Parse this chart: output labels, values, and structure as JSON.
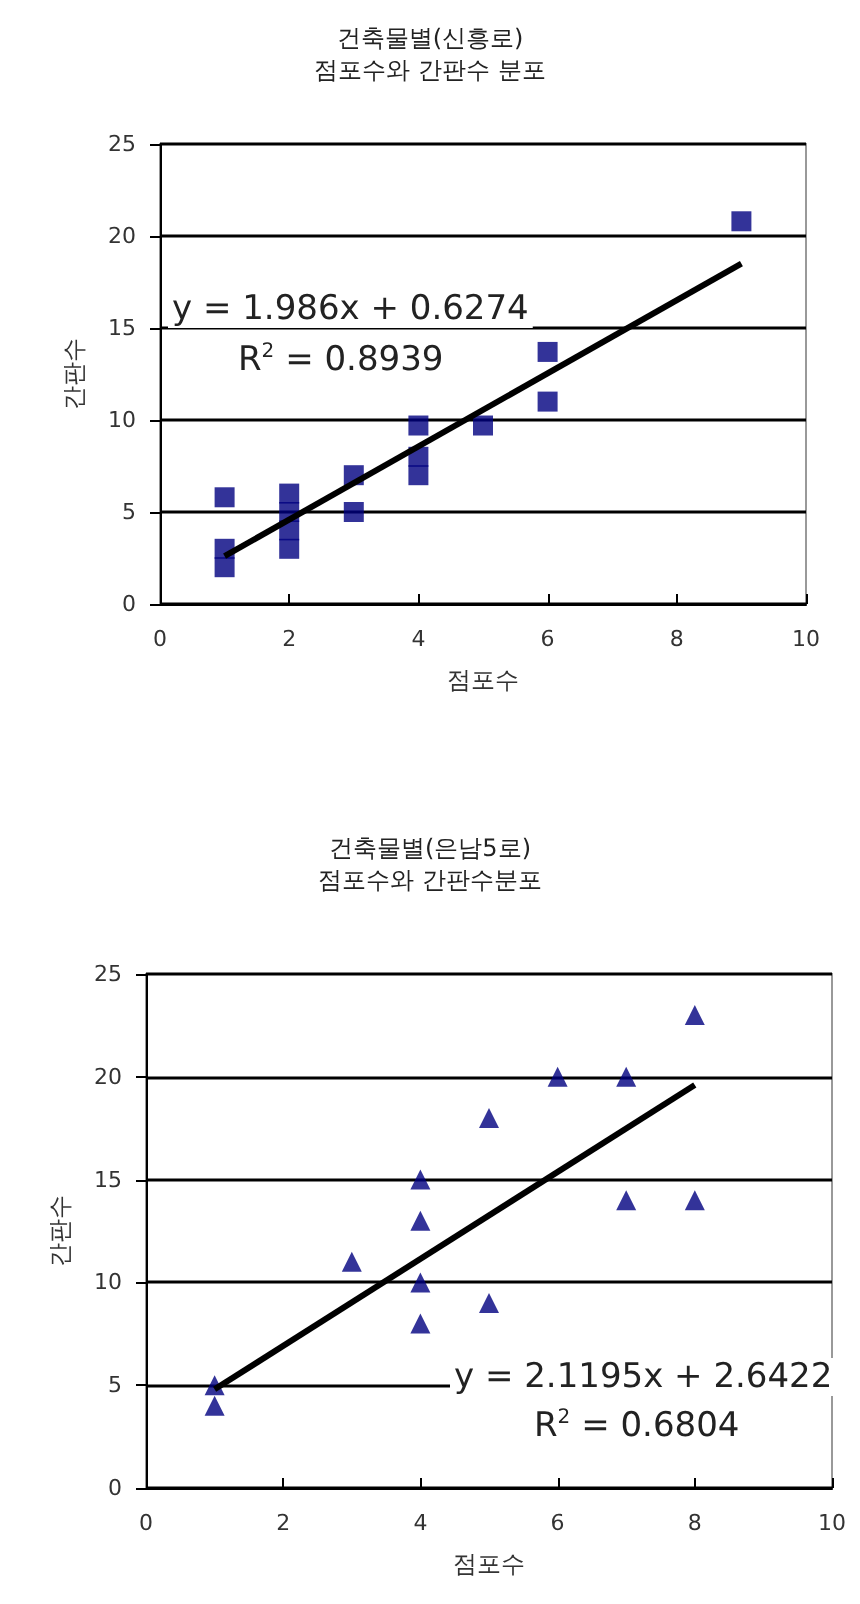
{
  "chart_data": [
    {
      "type": "scatter",
      "title": "건축물별(신흥로)",
      "subtitle": "점포수와 간판수 분포",
      "xlabel": "점포수",
      "ylabel": "간판수",
      "marker": "square",
      "grid": "y",
      "xlim": [
        0,
        10
      ],
      "xticks": [
        0,
        2,
        4,
        6,
        8,
        10
      ],
      "ylim": [
        0,
        25
      ],
      "yticks": [
        0,
        5,
        10,
        15,
        20,
        25
      ],
      "annotations": [
        "y = 1.986x + 0.6274",
        "R$^{2}$ = 0.8939"
      ],
      "series": [
        {
          "color": "#000080",
          "x": [
            1,
            1,
            1,
            2,
            2,
            2,
            2,
            3,
            3,
            4,
            4,
            4,
            5,
            6,
            6,
            9
          ],
          "values": [
            5.8,
            3,
            2,
            6,
            5,
            4,
            3,
            7,
            5,
            9.7,
            8,
            7,
            9.7,
            13.7,
            11,
            20.8
          ]
        },
        {
          "type": "line",
          "color": "#000000",
          "marker": "none",
          "x": [
            1,
            9
          ],
          "values": [
            2.6,
            18.5
          ]
        }
      ]
    },
    {
      "type": "scatter",
      "title": "건축물별(은남5로)",
      "subtitle": "점포수와 간판수분포",
      "xlabel": "점포수",
      "ylabel": "간판수",
      "marker": "triangle",
      "grid": "y",
      "xlim": [
        0,
        10
      ],
      "xticks": [
        0,
        2,
        4,
        6,
        8,
        10
      ],
      "ylim": [
        0,
        25
      ],
      "yticks": [
        0,
        5,
        10,
        15,
        20,
        25
      ],
      "annotations": [
        "y = 2.1195x + 2.6422",
        "R$^{2}$ = 0.6804"
      ],
      "series": [
        {
          "color": "#000080",
          "x": [
            1,
            1,
            3,
            4,
            4,
            4,
            4,
            5,
            5,
            6,
            7,
            7,
            8,
            8
          ],
          "values": [
            5,
            4,
            11,
            15,
            13,
            10,
            8,
            18,
            9,
            20,
            20,
            14,
            23,
            14
          ]
        },
        {
          "type": "line",
          "color": "#000000",
          "marker": "none",
          "x": [
            1,
            8
          ],
          "values": [
            4.8,
            19.6
          ]
        }
      ]
    }
  ]
}
